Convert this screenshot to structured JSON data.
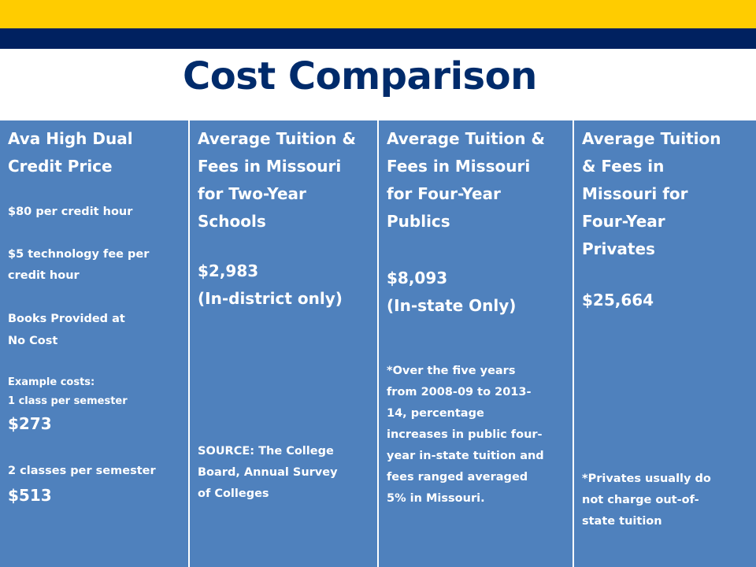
{
  "title": "Cost Comparison",
  "colors": {
    "gold": "#FFCC00",
    "navy": "#002160",
    "title": "#002B6B",
    "cell": "#4F81BD"
  },
  "columns": [
    {
      "heading_line1": "Ava High Dual",
      "heading_line2": "Credit Price",
      "price_per_hour": "$80 per credit hour",
      "tech_fee_line1": "$5 technology fee per",
      "tech_fee_line2": "credit hour",
      "books_line1": "Books Provided at",
      "books_line2": "No Cost",
      "example_label": "Example costs:",
      "example_one": "1 class per semester",
      "example_one_cost": "$273",
      "example_two": "2 classes per semester",
      "example_two_cost": "$513"
    },
    {
      "heading_lines": [
        "Average Tuition &",
        "Fees in Missouri",
        "for Two-Year",
        "Schools"
      ],
      "amount": "$2,983",
      "qualifier": "(In-district only)",
      "source_lines": [
        "SOURCE: The College",
        "Board, Annual Survey",
        "of Colleges"
      ]
    },
    {
      "heading_lines": [
        "Average Tuition &",
        "Fees in Missouri",
        "for Four-Year",
        "Publics"
      ],
      "amount": "$8,093",
      "qualifier": "(In-state Only)",
      "note_lines": [
        "*Over the five years",
        "from 2008-09 to 2013-",
        "14, percentage",
        "increases in public four-",
        "year in-state tuition and",
        "fees ranged averaged",
        "5% in Missouri."
      ]
    },
    {
      "heading_lines": [
        "Average Tuition",
        "& Fees in",
        "Missouri for",
        "Four-Year",
        "Privates"
      ],
      "amount": "$25,664",
      "note_lines": [
        "*Privates usually do",
        "not charge out-of-",
        "state tuition"
      ]
    }
  ]
}
